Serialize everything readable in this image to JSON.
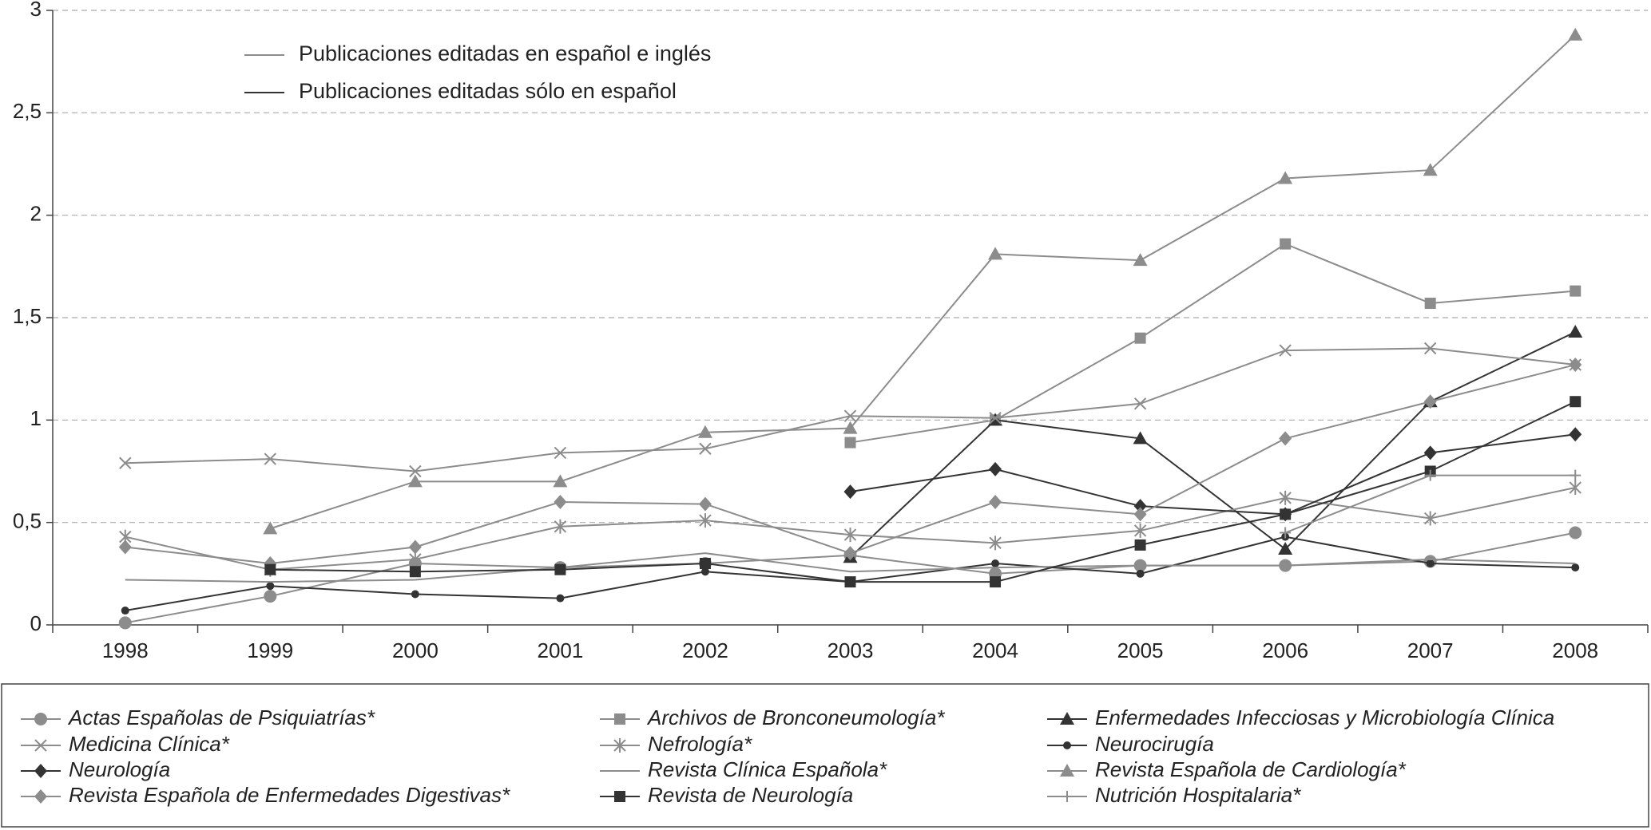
{
  "chart_data": {
    "type": "line",
    "notes": [
      {
        "text": "Publicaciones editadas en español e inglés",
        "color": "#8c8c8c"
      },
      {
        "text": "Publicaciones editadas sólo en español",
        "color": "#333333"
      }
    ],
    "categories": [
      "1998",
      "1999",
      "2000",
      "2001",
      "2002",
      "2003",
      "2004",
      "2005",
      "2006",
      "2007",
      "2008"
    ],
    "ylim": [
      0,
      3
    ],
    "yticks": [
      0,
      {
        "value": 0.5,
        "label": "0,5"
      },
      1,
      {
        "value": 1.5,
        "label": "1,5"
      },
      2,
      {
        "value": 2.5,
        "label": "2,5"
      },
      3
    ],
    "grid": true,
    "series": [
      {
        "name": "Actas Españolas de Psiquiatrías*",
        "color": "#8c8c8c",
        "marker": "circle",
        "values": [
          0.01,
          0.14,
          0.3,
          0.28,
          0.3,
          0.34,
          0.25,
          0.29,
          0.29,
          0.31,
          0.45
        ]
      },
      {
        "name": "Archivos de Bronconeumología*",
        "color": "#8c8c8c",
        "marker": "square",
        "values": [
          null,
          null,
          null,
          null,
          null,
          0.89,
          1.0,
          1.4,
          1.86,
          1.57,
          1.63
        ]
      },
      {
        "name": "Enfermedades Infecciosas y Microbiología Clínica",
        "color": "#333333",
        "marker": "triangle",
        "values": [
          null,
          null,
          null,
          null,
          null,
          0.33,
          1.0,
          0.91,
          0.37,
          1.09,
          1.43
        ]
      },
      {
        "name": "Medicina Clínica*",
        "color": "#8c8c8c",
        "marker": "x",
        "values": [
          0.79,
          0.81,
          0.75,
          0.84,
          0.86,
          1.02,
          1.01,
          1.08,
          1.34,
          1.35,
          1.27
        ]
      },
      {
        "name": "Nefrología*",
        "color": "#8c8c8c",
        "marker": "asterisk",
        "values": [
          0.43,
          0.27,
          0.32,
          0.48,
          0.51,
          0.44,
          0.4,
          0.46,
          0.62,
          0.52,
          0.67
        ]
      },
      {
        "name": "Neurocirugía",
        "color": "#333333",
        "marker": "dot",
        "values": [
          0.07,
          0.19,
          0.15,
          0.13,
          0.26,
          0.21,
          0.3,
          0.25,
          0.43,
          0.3,
          0.28
        ]
      },
      {
        "name": "Neurología",
        "color": "#333333",
        "marker": "diamond",
        "values": [
          null,
          null,
          null,
          null,
          null,
          0.65,
          0.76,
          0.58,
          0.54,
          0.84,
          0.93
        ]
      },
      {
        "name": "Revista Clínica Española*",
        "color": "#8c8c8c",
        "marker": "none",
        "values": [
          0.22,
          0.21,
          0.22,
          0.28,
          0.35,
          0.26,
          0.28,
          0.29,
          0.29,
          0.32,
          0.3
        ]
      },
      {
        "name": "Revista Española de Cardiología*",
        "color": "#8c8c8c",
        "marker": "triangle",
        "values": [
          null,
          0.47,
          0.7,
          0.7,
          0.94,
          0.96,
          1.81,
          1.78,
          2.18,
          2.22,
          2.88
        ]
      },
      {
        "name": "Revista Española de Enfermedades Digestivas*",
        "color": "#8c8c8c",
        "marker": "diamond",
        "values": [
          0.38,
          0.3,
          0.38,
          0.6,
          0.59,
          0.35,
          0.6,
          0.54,
          0.91,
          1.09,
          1.27
        ]
      },
      {
        "name": "Revista de Neurología",
        "color": "#333333",
        "marker": "square",
        "values": [
          null,
          0.27,
          0.26,
          0.27,
          0.3,
          0.21,
          0.21,
          0.39,
          0.54,
          0.75,
          1.09
        ]
      },
      {
        "name": "Nutrición Hospitalaria*",
        "color": "#8c8c8c",
        "marker": "plus",
        "values": [
          null,
          null,
          null,
          null,
          null,
          null,
          null,
          null,
          0.45,
          0.73,
          0.73
        ]
      }
    ]
  }
}
